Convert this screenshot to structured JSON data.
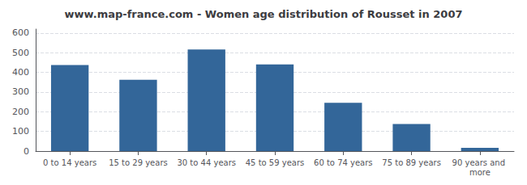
{
  "chart_data": {
    "type": "bar",
    "title": "www.map-france.com - Women age distribution of Rousset in 2007",
    "categories": [
      "0 to 14 years",
      "15 to 29 years",
      "30 to 44 years",
      "45 to 59 years",
      "60 to 74 years",
      "75 to 89 years",
      "90 years and more"
    ],
    "values": [
      437,
      362,
      516,
      440,
      245,
      138,
      16
    ],
    "color": "#336699",
    "ylim": [
      0,
      620
    ],
    "yticks": [
      0,
      100,
      200,
      300,
      400,
      500,
      600
    ],
    "grid": true
  }
}
